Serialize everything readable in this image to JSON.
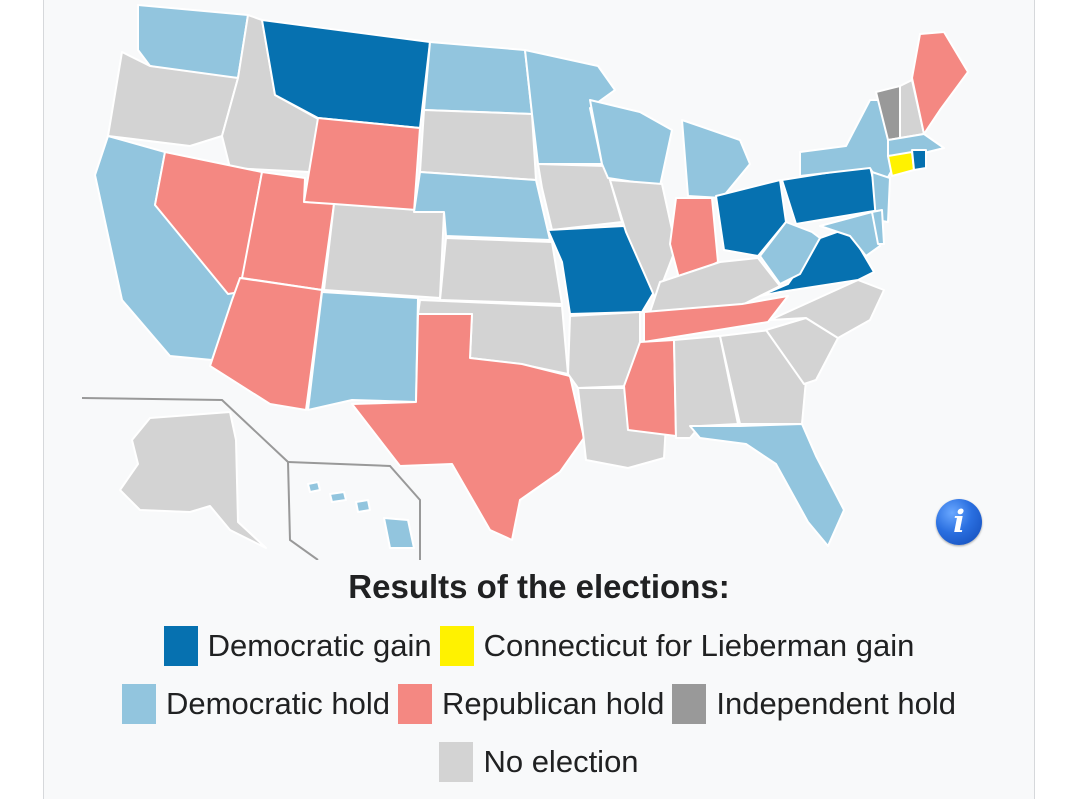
{
  "caption": "Results of the elections:",
  "legend": {
    "dem_gain": {
      "label": "Democratic gain",
      "color": "#0671b0"
    },
    "cfl_gain": {
      "label": "Connecticut for Lieberman gain",
      "color": "#fff200"
    },
    "dem_hold": {
      "label": "Democratic hold",
      "color": "#92c5de"
    },
    "rep_hold": {
      "label": "Republican hold",
      "color": "#f48882"
    },
    "ind_hold": {
      "label": "Independent hold",
      "color": "#999999"
    },
    "no_election": {
      "label": "No election",
      "color": "#d3d3d3"
    }
  },
  "info_icon": {
    "glyph": "i",
    "icon": "info-icon"
  }
}
